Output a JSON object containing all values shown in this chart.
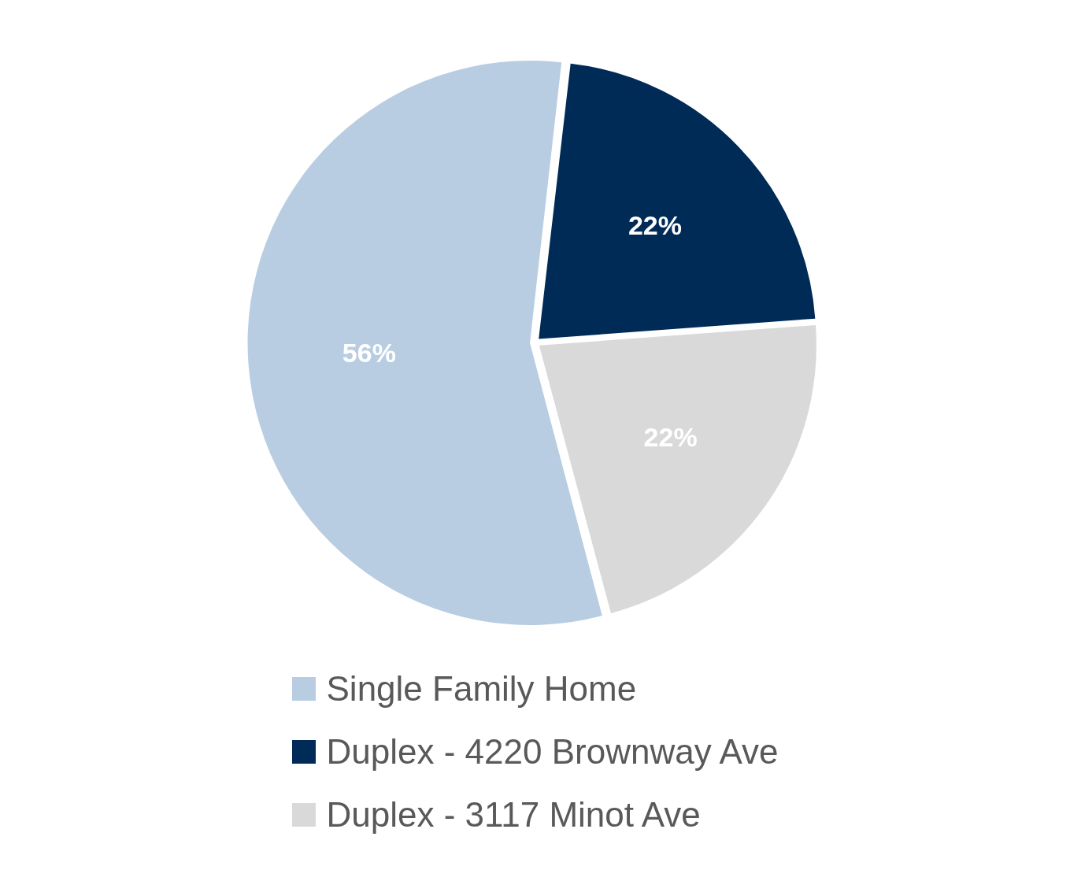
{
  "chart_data": {
    "type": "pie",
    "categories": [
      "Single Family Home",
      "Duplex - 4220 Brownway Ave",
      "Duplex - 3117 Minot Ave"
    ],
    "values": [
      56,
      22,
      22
    ],
    "colors": [
      "#b9cde2",
      "#002b57",
      "#d9d9d9"
    ],
    "value_labels": [
      "56%",
      "22%",
      "22%"
    ],
    "legend": "bottom"
  }
}
